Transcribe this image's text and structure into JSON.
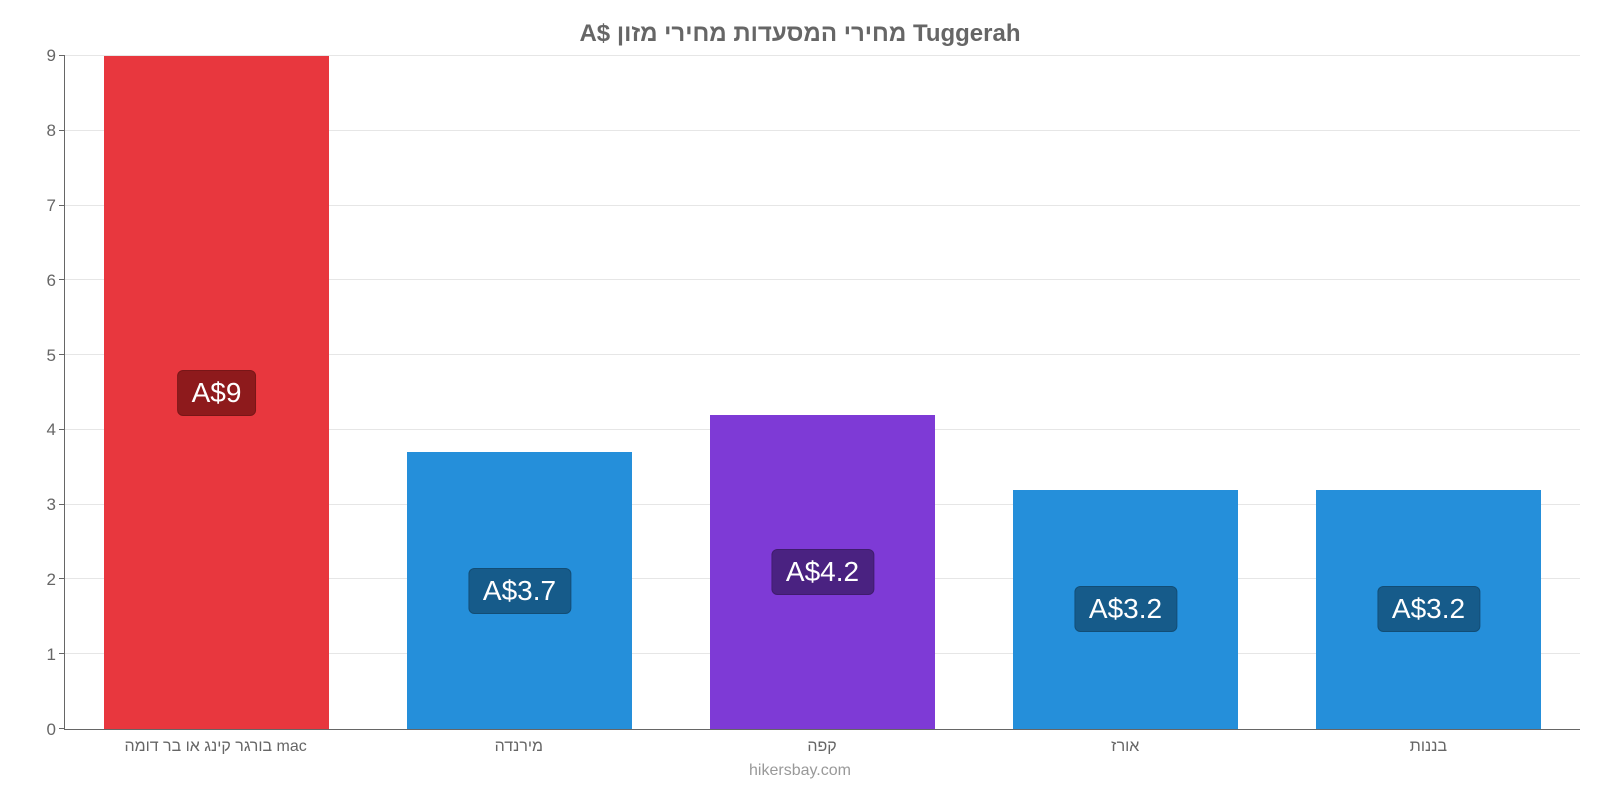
{
  "chart": {
    "type": "bar",
    "title": "A$ מחירי המסעדות מחירי מזון Tuggerah",
    "title_color": "#666666",
    "title_fontsize": 24,
    "footer": "hikersbay.com",
    "footer_color": "#999999",
    "background_color": "#ffffff",
    "grid_color": "#e6e6e6",
    "axis_color": "#666666",
    "label_color": "#666666",
    "label_fontsize": 16,
    "badge_fontsize": 28,
    "ylim": [
      0,
      9
    ],
    "ytick_step": 1,
    "bar_width_pct": 74,
    "badge_position_pct": 50,
    "categories": [
      "בורגר קינג או בר דומה mac",
      "מירנדה",
      "קפה",
      "אורז",
      "בננות"
    ],
    "values": [
      9,
      3.7,
      4.2,
      3.2,
      3.2
    ],
    "value_labels": [
      "A$9",
      "A$3.7",
      "A$4.2",
      "A$3.2",
      "A$3.2"
    ],
    "bar_colors": [
      "#e8373e",
      "#258fda",
      "#7e3ad6",
      "#258fda",
      "#258fda"
    ],
    "badge_colors": [
      "#8e1a1c",
      "#165b8a",
      "#4a2281",
      "#165b8a",
      "#165b8a"
    ]
  }
}
